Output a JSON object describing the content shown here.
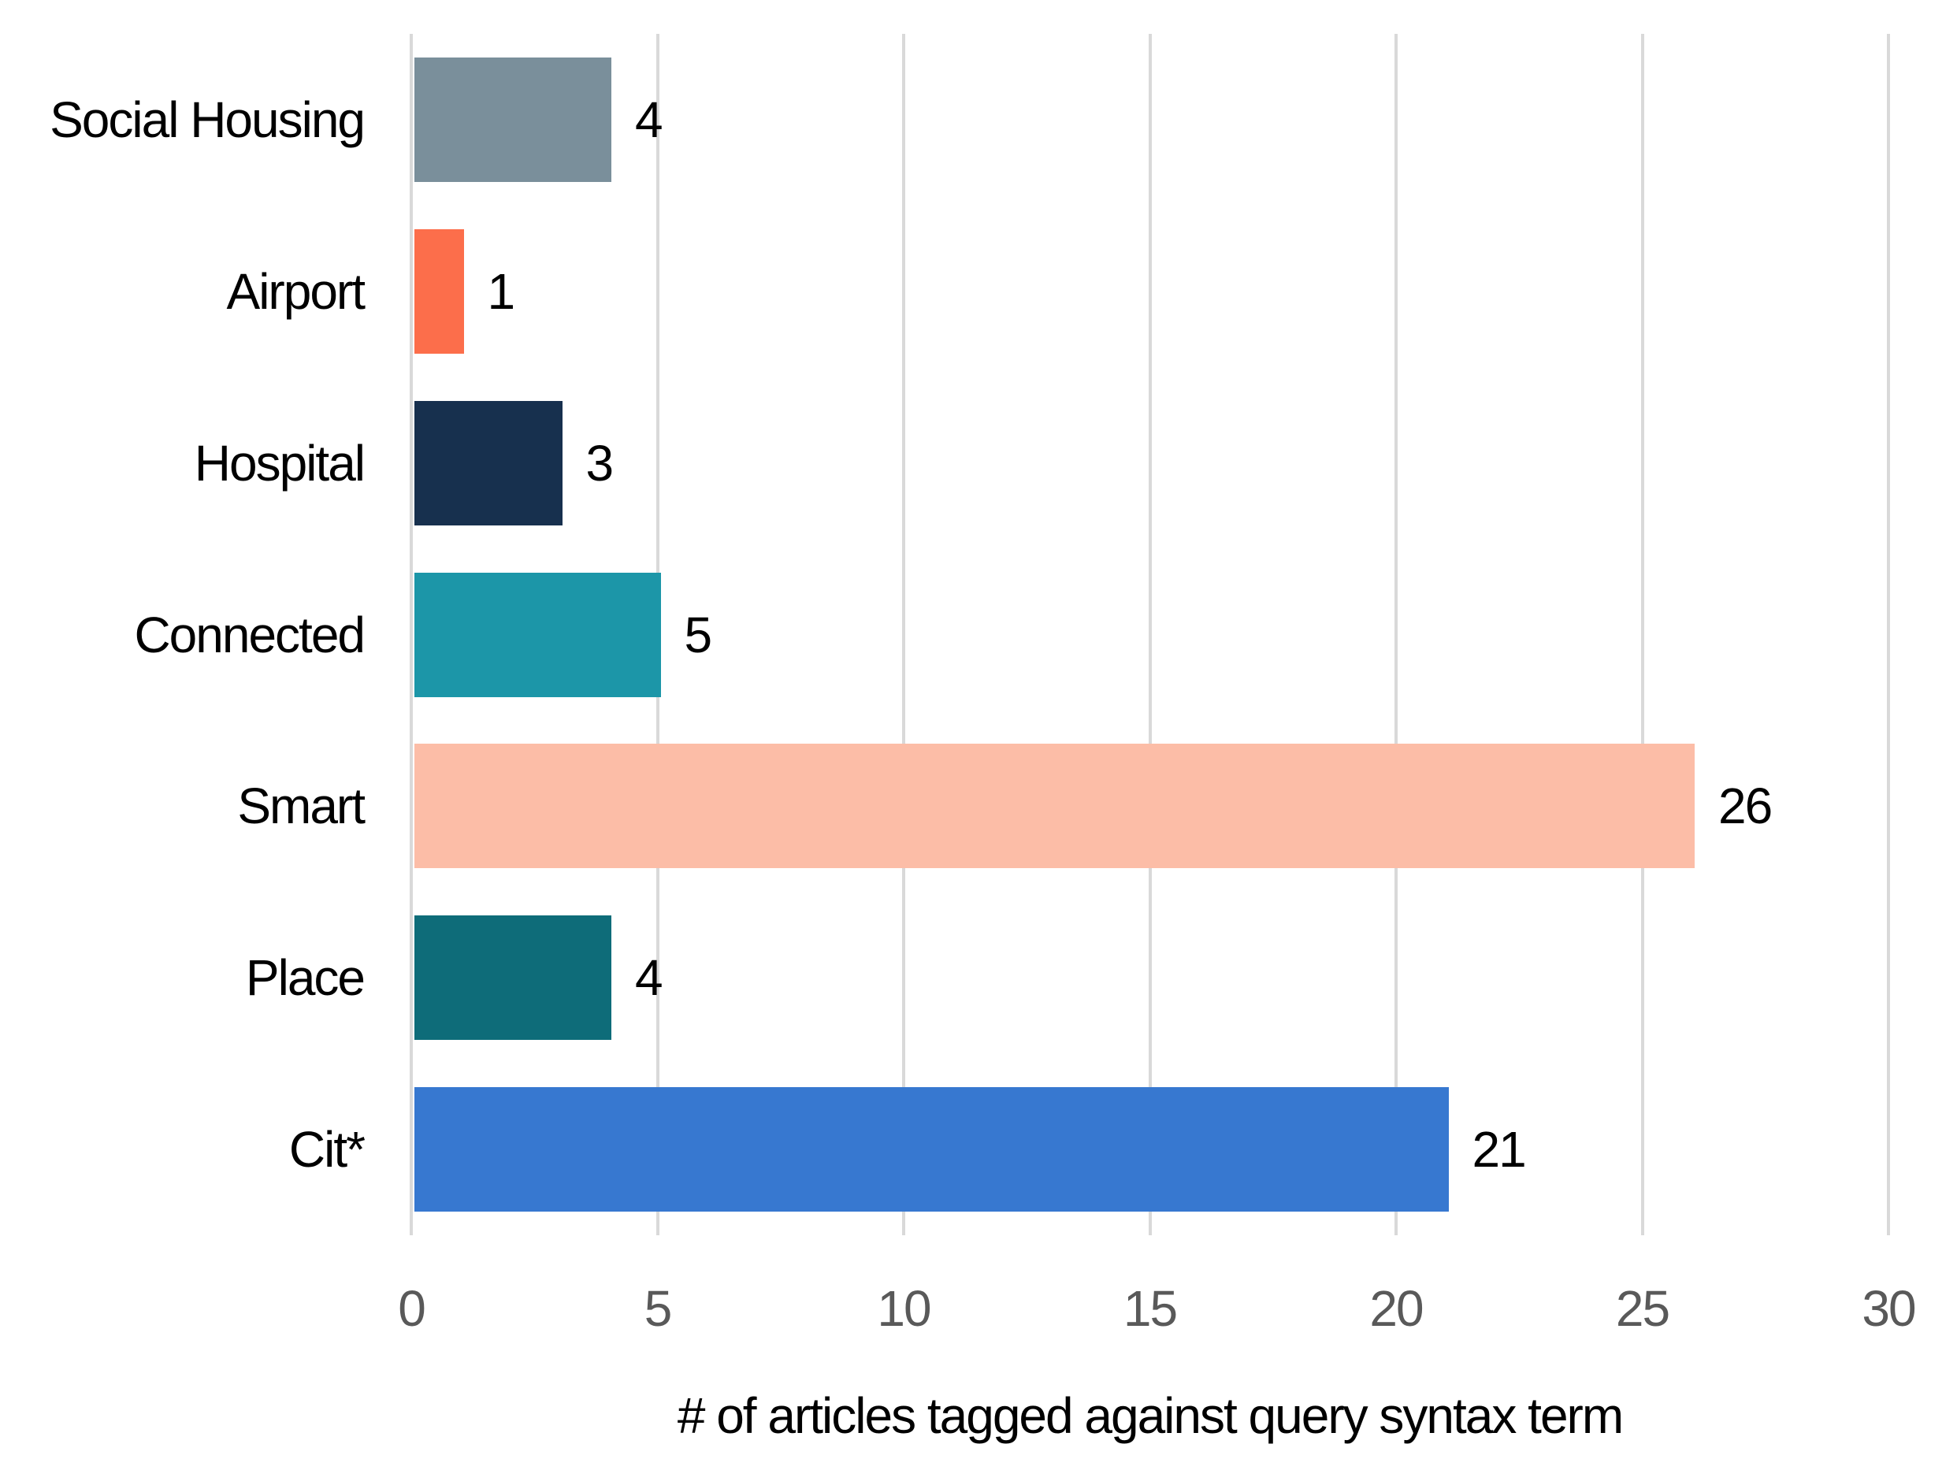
{
  "chart_data": {
    "type": "bar",
    "orientation": "horizontal",
    "categories": [
      "Social Housing",
      "Airport",
      "Hospital",
      "Connected",
      "Smart",
      "Place",
      "Cit*"
    ],
    "values": [
      4,
      1,
      3,
      5,
      26,
      4,
      21
    ],
    "bar_colors": [
      "#7A8F9B",
      "#FC6E4B",
      "#17304E",
      "#1C96A8",
      "#FCBDA7",
      "#0E6C79",
      "#3778D0"
    ],
    "title": "",
    "xlabel": "# of articles tagged against query syntax term",
    "ylabel": "",
    "xlim": [
      0,
      30
    ],
    "x_ticks": [
      "0",
      "5",
      "10",
      "15",
      "20",
      "25",
      "30"
    ],
    "grid": "vertical",
    "legend": "none",
    "data_labels": [
      4,
      1,
      3,
      5,
      26,
      4,
      21
    ]
  },
  "colors": {
    "background": "#FFFFFF",
    "gridline": "#D9D9D9",
    "tick_label_text": "#595959",
    "label_text": "#000000"
  }
}
